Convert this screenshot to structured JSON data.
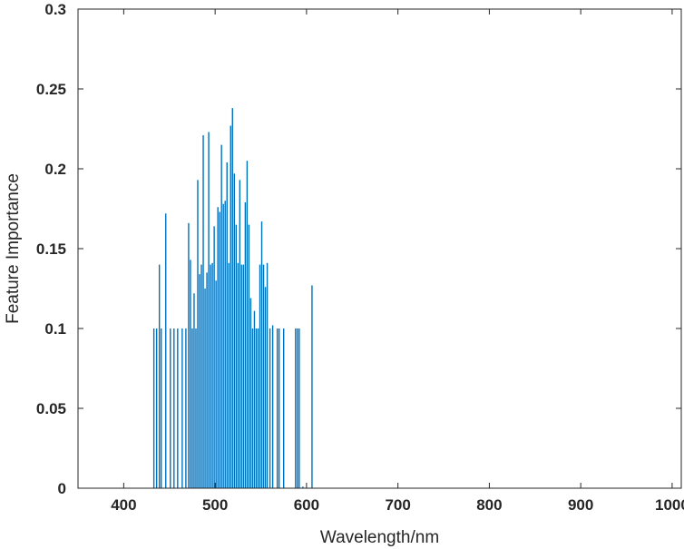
{
  "chart_data": {
    "type": "bar",
    "title": "",
    "xlabel": "Wavelength/nm",
    "ylabel": "Feature Importance",
    "xlim": [
      350,
      1010
    ],
    "ylim": [
      0,
      0.3
    ],
    "xticks": [
      400,
      500,
      600,
      700,
      800,
      900,
      1000
    ],
    "yticks": [
      0,
      0.05,
      0.1,
      0.15,
      0.2,
      0.25,
      0.3
    ],
    "ytick_labels": [
      "0",
      "0.05",
      "0.1",
      "0.15",
      "0.2",
      "0.25",
      "0.3"
    ],
    "grid": false,
    "bar_color": "#0072BD",
    "x": [
      433,
      436,
      439,
      441,
      446,
      451,
      455,
      459,
      464,
      468,
      471,
      473,
      475,
      477,
      479,
      481,
      483,
      485,
      487,
      489,
      491,
      493,
      495,
      497,
      499,
      501,
      503,
      505,
      507,
      509,
      511,
      513,
      515,
      517,
      519,
      521,
      523,
      525,
      527,
      529,
      531,
      533,
      535,
      537,
      539,
      541,
      543,
      545,
      547,
      549,
      551,
      553,
      555,
      557,
      560,
      563,
      568,
      570,
      575,
      588,
      590,
      592,
      596,
      606
    ],
    "values": [
      0.1,
      0.1,
      0.14,
      0.1,
      0.172,
      0.1,
      0.1,
      0.1,
      0.1,
      0.1,
      0.166,
      0.143,
      0.1,
      0.122,
      0.1,
      0.193,
      0.134,
      0.14,
      0.221,
      0.125,
      0.135,
      0.223,
      0.14,
      0.141,
      0.164,
      0.13,
      0.176,
      0.173,
      0.215,
      0.178,
      0.18,
      0.204,
      0.141,
      0.227,
      0.238,
      0.197,
      0.165,
      0.141,
      0.193,
      0.14,
      0.14,
      0.179,
      0.205,
      0.165,
      0.119,
      0.1,
      0.111,
      0.1,
      0.1,
      0.14,
      0.167,
      0.14,
      0.126,
      0.141,
      0.1,
      0.102,
      0.1,
      0.1,
      0.1,
      0.1,
      0.1,
      0.1,
      0.001,
      0.127
    ]
  }
}
